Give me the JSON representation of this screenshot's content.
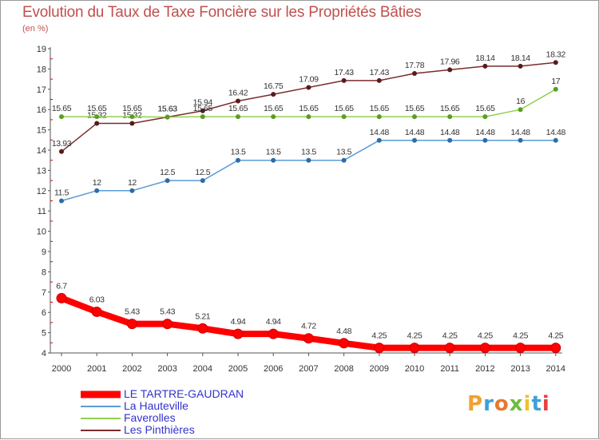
{
  "title": "Evolution du Taux de Taxe Foncière sur les Propriétés Bâties",
  "subtitle": "(en %)",
  "logo": "Proxiti",
  "chart_data": {
    "type": "line",
    "x": [
      "2000",
      "2001",
      "2002",
      "2003",
      "2004",
      "2005",
      "2006",
      "2007",
      "2008",
      "2009",
      "2010",
      "2011",
      "2012",
      "2013",
      "2014"
    ],
    "ylim": [
      4,
      19
    ],
    "yticks": [
      4,
      5,
      6,
      7,
      8,
      9,
      10,
      11,
      12,
      13,
      14,
      15,
      16,
      17,
      18,
      19
    ],
    "grid": false,
    "legend_position": "bottom-left",
    "series": [
      {
        "name": "LE TARTRE-GAUDRAN",
        "color": "#ff0000",
        "width": 8,
        "values": [
          6.7,
          6.03,
          5.43,
          5.43,
          5.21,
          4.94,
          4.94,
          4.72,
          4.48,
          4.25,
          4.25,
          4.25,
          4.25,
          4.25,
          4.25
        ],
        "labels": [
          "6.7",
          "6.03",
          "5.43",
          "5.43",
          "5.21",
          "4.94",
          "4.94",
          "4.72",
          "4.48",
          "4.25",
          "4.25",
          "4.25",
          "4.25",
          "4.25",
          "4.25"
        ]
      },
      {
        "name": "La Hauteville",
        "color": "#5b9bd5",
        "width": 1.5,
        "values": [
          11.5,
          12,
          12,
          12.5,
          12.5,
          13.5,
          13.5,
          13.5,
          13.5,
          14.48,
          14.48,
          14.48,
          14.48,
          14.48,
          14.48
        ],
        "labels": [
          "11.5",
          "12",
          "12",
          "12.5",
          "12.5",
          "13.5",
          "13.5",
          "13.5",
          "13.5",
          "14.48",
          "14.48",
          "14.48",
          "14.48",
          "14.48",
          "14.48"
        ]
      },
      {
        "name": "Faverolles",
        "color": "#92d050",
        "width": 1.5,
        "values": [
          15.65,
          15.65,
          15.65,
          15.63,
          15.65,
          15.65,
          15.65,
          15.65,
          15.65,
          15.65,
          15.65,
          15.65,
          15.65,
          16,
          17
        ],
        "labels": [
          "15.65",
          "15.65",
          "15.65",
          "15.63",
          "15.65",
          "15.65",
          "15.65",
          "15.65",
          "15.65",
          "15.65",
          "15.65",
          "15.65",
          "15.65",
          "16",
          "17"
        ]
      },
      {
        "name": "Les Pinthières",
        "color": "#7b2c2c",
        "width": 1.5,
        "values": [
          13.93,
          15.32,
          15.32,
          15.63,
          15.94,
          16.42,
          16.75,
          17.09,
          17.43,
          17.43,
          17.78,
          17.96,
          18.14,
          18.14,
          18.32
        ],
        "labels": [
          "13.93",
          "15.32",
          "15.32",
          "15.63",
          "15.94",
          "16.42",
          "16.75",
          "17.09",
          "17.43",
          "17.43",
          "17.78",
          "17.96",
          "18.14",
          "18.14",
          "18.32"
        ]
      }
    ]
  }
}
